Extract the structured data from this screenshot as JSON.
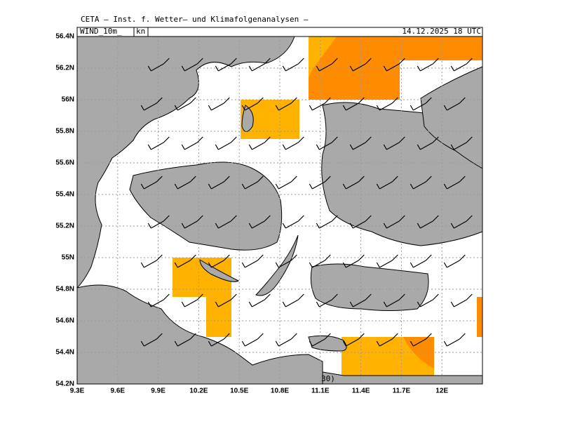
{
  "header": {
    "title": "CETA – Inst. f. Wetter– und Klimafolgenanalysen –",
    "field": "WIND_10m_",
    "unit": "kn",
    "datetime": "14.12.2025 18 UTC"
  },
  "map": {
    "lat_labels": [
      "56.4N",
      "56.2N",
      "56N",
      "55.8N",
      "55.6N",
      "55.4N",
      "55.2N",
      "55N",
      "54.8N",
      "54.6N",
      "54.4N",
      "54.2N"
    ],
    "lon_labels": [
      "9.3E",
      "9.6E",
      "9.9E",
      "10.2E",
      "10.5E",
      "10.8E",
      "11.1E",
      "11.4E",
      "11.7E",
      "12E"
    ],
    "scale_label": "30)"
  }
}
